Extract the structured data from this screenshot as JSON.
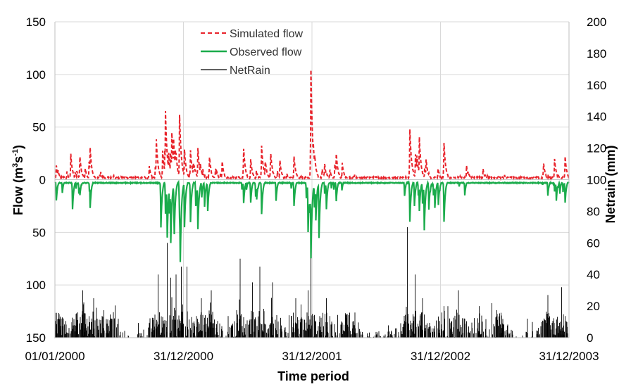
{
  "chart_data": {
    "type": "line",
    "xlabel": "Time period",
    "ylabel_left": "Flow (m³s⁻¹)",
    "ylabel_left_parts": [
      "Flow (m",
      "3",
      "s",
      "-1",
      ")"
    ],
    "ylabel_right": "Netrain (mm)",
    "x_ticks": [
      "01/01/2000",
      "31/12/2000",
      "31/12/2001",
      "31/12/2002",
      "31/12/2003"
    ],
    "x_range": [
      "01/01/2000",
      "31/12/2003"
    ],
    "left_axis": {
      "range": [
        -150,
        150
      ],
      "upper_range": [
        0,
        150
      ],
      "lower_range_inverted": [
        0,
        150
      ],
      "ticks": [
        "150",
        "100",
        "50",
        "0",
        "50",
        "100",
        "150"
      ]
    },
    "right_axis": {
      "range": [
        0,
        200
      ],
      "ticks": [
        "0",
        "20",
        "40",
        "60",
        "80",
        "100",
        "120",
        "140",
        "160",
        "180",
        "200"
      ]
    },
    "grid": true,
    "legend_position": "top-center",
    "legend": [
      "Simulated flow",
      "Observed flow",
      "NetRain"
    ],
    "series": [
      {
        "name": "Simulated flow",
        "axis": "left",
        "direction": "up",
        "color": "#e8232b",
        "style": "dashed",
        "note": "Peaks (flow above zero line, m3/s)",
        "peaks": [
          {
            "date": "2000-01-05",
            "value": 13
          },
          {
            "date": "2000-02-15",
            "value": 25
          },
          {
            "date": "2000-03-12",
            "value": 22
          },
          {
            "date": "2000-04-10",
            "value": 30
          },
          {
            "date": "2000-05-10",
            "value": 8
          },
          {
            "date": "2000-06-15",
            "value": 4
          },
          {
            "date": "2000-08-10",
            "value": 3
          },
          {
            "date": "2000-10-15",
            "value": 38
          },
          {
            "date": "2000-11-10",
            "value": 65
          },
          {
            "date": "2000-11-28",
            "value": 45
          },
          {
            "date": "2000-12-20",
            "value": 62
          },
          {
            "date": "2001-01-20",
            "value": 28
          },
          {
            "date": "2001-02-10",
            "value": 30
          },
          {
            "date": "2001-03-15",
            "value": 22
          },
          {
            "date": "2001-04-20",
            "value": 18
          },
          {
            "date": "2001-06-20",
            "value": 30
          },
          {
            "date": "2001-07-10",
            "value": 20
          },
          {
            "date": "2001-08-10",
            "value": 32
          },
          {
            "date": "2001-09-05",
            "value": 25
          },
          {
            "date": "2001-10-01",
            "value": 18
          },
          {
            "date": "2001-11-10",
            "value": 22
          },
          {
            "date": "2001-12-28",
            "value": 105
          },
          {
            "date": "2002-02-05",
            "value": 15
          },
          {
            "date": "2002-03-10",
            "value": 25
          },
          {
            "date": "2002-05-01",
            "value": 5
          },
          {
            "date": "2002-07-01",
            "value": 3
          },
          {
            "date": "2002-10-05",
            "value": 48
          },
          {
            "date": "2002-11-01",
            "value": 40
          },
          {
            "date": "2002-11-20",
            "value": 20
          },
          {
            "date": "2003-01-10",
            "value": 35
          },
          {
            "date": "2003-03-15",
            "value": 13
          },
          {
            "date": "2003-05-01",
            "value": 10
          },
          {
            "date": "2003-07-01",
            "value": 4
          },
          {
            "date": "2003-10-20",
            "value": 15
          },
          {
            "date": "2003-11-20",
            "value": 20
          },
          {
            "date": "2003-12-20",
            "value": 22
          }
        ]
      },
      {
        "name": "Observed flow",
        "axis": "left",
        "direction": "down",
        "color": "#1aab4b",
        "style": "solid",
        "note": "Peaks (flow plotted below zero line, m3/s)",
        "peaks": [
          {
            "date": "2000-01-05",
            "value": 20
          },
          {
            "date": "2000-02-20",
            "value": 28
          },
          {
            "date": "2000-03-12",
            "value": 15
          },
          {
            "date": "2000-04-10",
            "value": 27
          },
          {
            "date": "2000-10-28",
            "value": 45
          },
          {
            "date": "2000-11-15",
            "value": 55
          },
          {
            "date": "2000-11-25",
            "value": 60
          },
          {
            "date": "2000-12-05",
            "value": 52
          },
          {
            "date": "2000-12-22",
            "value": 78
          },
          {
            "date": "2001-01-20",
            "value": 40
          },
          {
            "date": "2001-02-10",
            "value": 47
          },
          {
            "date": "2001-03-10",
            "value": 30
          },
          {
            "date": "2001-06-20",
            "value": 22
          },
          {
            "date": "2001-07-10",
            "value": 22
          },
          {
            "date": "2001-08-10",
            "value": 33
          },
          {
            "date": "2001-09-20",
            "value": 20
          },
          {
            "date": "2001-11-10",
            "value": 25
          },
          {
            "date": "2001-12-20",
            "value": 50
          },
          {
            "date": "2001-12-28",
            "value": 75
          },
          {
            "date": "2002-01-20",
            "value": 55
          },
          {
            "date": "2002-02-10",
            "value": 28
          },
          {
            "date": "2002-03-10",
            "value": 20
          },
          {
            "date": "2002-10-05",
            "value": 40
          },
          {
            "date": "2002-11-01",
            "value": 30
          },
          {
            "date": "2002-11-15",
            "value": 48
          },
          {
            "date": "2002-12-15",
            "value": 27
          },
          {
            "date": "2003-01-10",
            "value": 40
          },
          {
            "date": "2003-03-10",
            "value": 15
          },
          {
            "date": "2003-11-01",
            "value": 15
          },
          {
            "date": "2003-11-25",
            "value": 20
          },
          {
            "date": "2003-12-20",
            "value": 22
          }
        ]
      },
      {
        "name": "NetRain",
        "axis": "right",
        "direction": "up",
        "color": "#000000",
        "style": "solid",
        "note": "Daily rainfall spikes (mm), tallest peaks",
        "peaks": [
          {
            "date": "2000-01-10",
            "value": 12
          },
          {
            "date": "2000-03-01",
            "value": 15
          },
          {
            "date": "2000-03-20",
            "value": 30
          },
          {
            "date": "2000-04-20",
            "value": 25
          },
          {
            "date": "2000-06-10",
            "value": 12
          },
          {
            "date": "2000-10-20",
            "value": 40
          },
          {
            "date": "2000-11-15",
            "value": 60
          },
          {
            "date": "2000-11-25",
            "value": 38
          },
          {
            "date": "2000-12-10",
            "value": 40
          },
          {
            "date": "2000-12-25",
            "value": 45
          },
          {
            "date": "2001-01-10",
            "value": 45
          },
          {
            "date": "2001-02-20",
            "value": 25
          },
          {
            "date": "2001-03-20",
            "value": 30
          },
          {
            "date": "2001-06-10",
            "value": 50
          },
          {
            "date": "2001-07-15",
            "value": 35
          },
          {
            "date": "2001-08-05",
            "value": 45
          },
          {
            "date": "2001-09-10",
            "value": 35
          },
          {
            "date": "2001-11-15",
            "value": 25
          },
          {
            "date": "2001-12-20",
            "value": 30
          },
          {
            "date": "2001-12-28",
            "value": 55
          },
          {
            "date": "2002-02-10",
            "value": 25
          },
          {
            "date": "2002-04-10",
            "value": 15
          },
          {
            "date": "2002-09-28",
            "value": 70
          },
          {
            "date": "2002-10-20",
            "value": 40
          },
          {
            "date": "2002-11-10",
            "value": 25
          },
          {
            "date": "2003-01-10",
            "value": 20
          },
          {
            "date": "2003-02-20",
            "value": 30
          },
          {
            "date": "2003-04-20",
            "value": 20
          },
          {
            "date": "2003-06-10",
            "value": 15
          },
          {
            "date": "2003-11-01",
            "value": 27
          },
          {
            "date": "2003-12-10",
            "value": 32
          }
        ]
      }
    ]
  }
}
